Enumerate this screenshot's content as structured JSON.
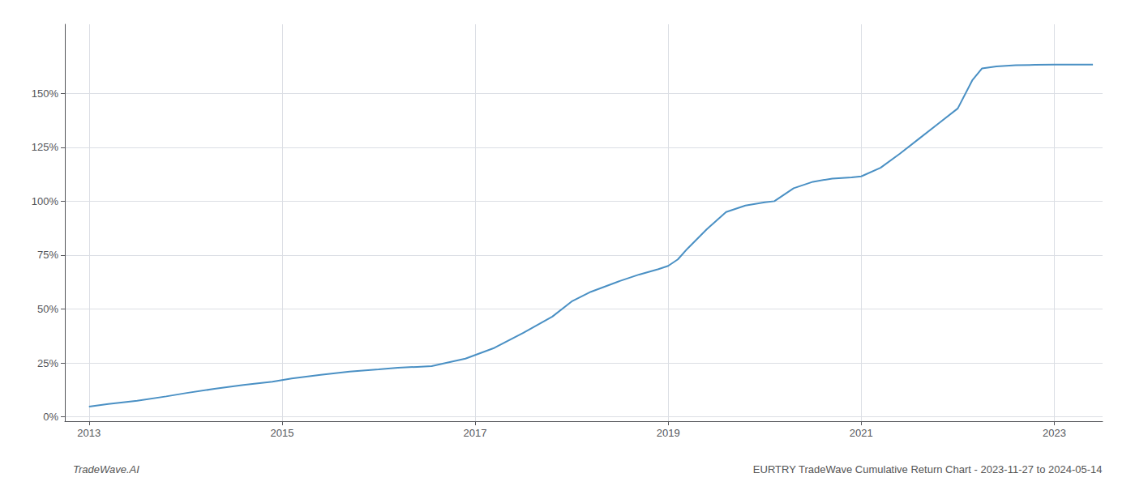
{
  "chart_data": {
    "type": "line",
    "color": "#4a90c4",
    "x": [
      2013.0,
      2013.2,
      2013.5,
      2013.8,
      2014.0,
      2014.3,
      2014.6,
      2014.9,
      2015.1,
      2015.4,
      2015.7,
      2016.0,
      2016.2,
      2016.4,
      2016.55,
      2016.7,
      2016.9,
      2017.2,
      2017.5,
      2017.8,
      2018.0,
      2018.2,
      2018.5,
      2018.7,
      2018.9,
      2019.0,
      2019.1,
      2019.2,
      2019.4,
      2019.6,
      2019.8,
      2020.0,
      2020.1,
      2020.3,
      2020.5,
      2020.7,
      2020.9,
      2021.0,
      2021.2,
      2021.4,
      2021.6,
      2021.8,
      2022.0,
      2022.15,
      2022.25,
      2022.4,
      2022.6,
      2022.8,
      2023.0,
      2023.2,
      2023.4
    ],
    "values": [
      0.048,
      0.06,
      0.075,
      0.095,
      0.11,
      0.13,
      0.148,
      0.163,
      0.178,
      0.195,
      0.21,
      0.22,
      0.228,
      0.232,
      0.235,
      0.25,
      0.27,
      0.32,
      0.39,
      0.465,
      0.535,
      0.58,
      0.63,
      0.66,
      0.685,
      0.7,
      0.73,
      0.78,
      0.87,
      0.95,
      0.98,
      0.995,
      1.0,
      1.06,
      1.09,
      1.105,
      1.11,
      1.115,
      1.155,
      1.22,
      1.29,
      1.36,
      1.43,
      1.56,
      1.615,
      1.625,
      1.63,
      1.632,
      1.633,
      1.633,
      1.633
    ],
    "xlim": [
      2012.75,
      2023.5
    ],
    "xticks": [
      2013,
      2015,
      2017,
      2019,
      2021,
      2023
    ],
    "ylim": [
      -0.02,
      1.82
    ],
    "yticks": [
      {
        "value": 0.0,
        "label": "0%"
      },
      {
        "value": 0.25,
        "label": "25%"
      },
      {
        "value": 0.5,
        "label": "50%"
      },
      {
        "value": 0.75,
        "label": "75%"
      },
      {
        "value": 1.0,
        "label": "100%"
      },
      {
        "value": 1.25,
        "label": "125%"
      },
      {
        "value": 1.5,
        "label": "150%"
      }
    ],
    "grid": true,
    "annotations": [
      "TradeWave.AI",
      "EURTRY TradeWave Cumulative Return Chart - 2023-11-27 to 2024-05-14"
    ]
  }
}
